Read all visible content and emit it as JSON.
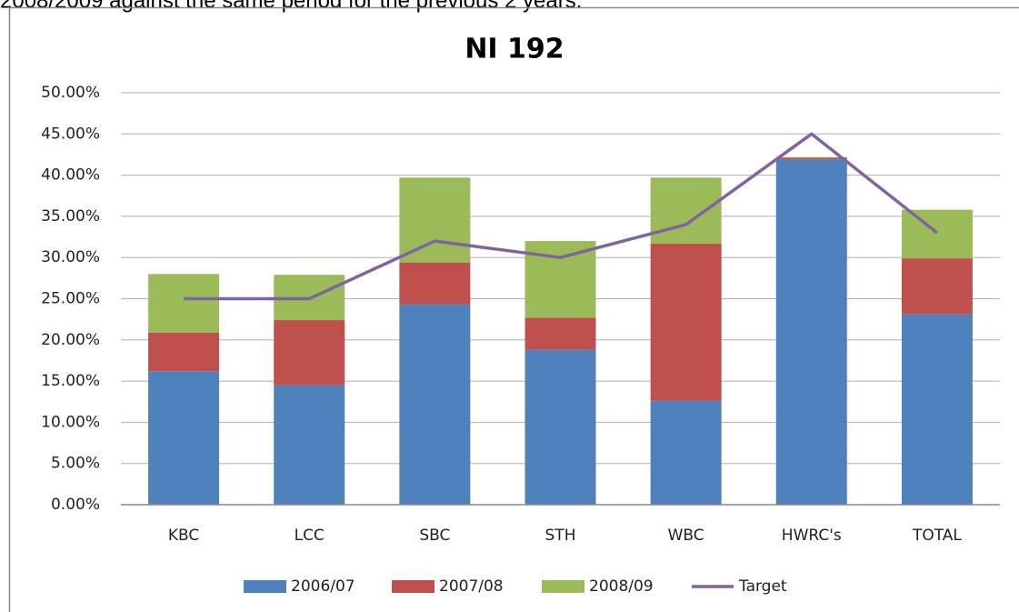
{
  "caption": "2008/2009 against the same period for the previous 2 years.",
  "chart_data": {
    "type": "stacked_bar_line",
    "title": "NI 192",
    "categories": [
      "KBC",
      "LCC",
      "SBC",
      "STH",
      "WBC",
      "HWRC's",
      "TOTAL"
    ],
    "series": [
      {
        "name": "2006/07",
        "color": "#4f81bd",
        "values": [
          16.2,
          14.5,
          24.3,
          18.8,
          12.6,
          41.9,
          23.1
        ]
      },
      {
        "name": "2007/08",
        "color": "#c0504d",
        "values": [
          4.7,
          7.9,
          5.1,
          3.9,
          19.1,
          0.2,
          6.8
        ]
      },
      {
        "name": "2008/09",
        "color": "#9bbb59",
        "values": [
          7.1,
          5.5,
          10.3,
          9.3,
          8.0,
          0.1,
          5.9
        ]
      },
      {
        "name": "Target",
        "color": "#8064a2",
        "type": "line",
        "values": [
          25,
          25,
          32,
          30,
          34,
          45,
          33
        ]
      }
    ],
    "ylim": [
      0,
      50
    ],
    "yticks": [
      {
        "value": 0,
        "label": "0.00%"
      },
      {
        "value": 5,
        "label": "5.00%"
      },
      {
        "value": 10,
        "label": "10.00%"
      },
      {
        "value": 15,
        "label": "15.00%"
      },
      {
        "value": 20,
        "label": "20.00%"
      },
      {
        "value": 25,
        "label": "25.00%"
      },
      {
        "value": 30,
        "label": "30.00%"
      },
      {
        "value": 35,
        "label": "35.00%"
      },
      {
        "value": 40,
        "label": "40.00%"
      },
      {
        "value": 45,
        "label": "45.00%"
      },
      {
        "value": 50,
        "label": "50.00%"
      }
    ],
    "grid": true,
    "legend": "bottom"
  }
}
